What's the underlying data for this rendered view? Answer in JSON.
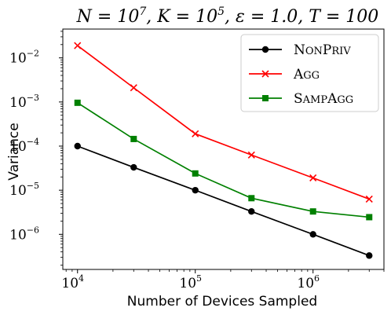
{
  "chart_data": {
    "type": "line",
    "title": "N = 10^7, K = 10^5, ε = 1.0, T = 100",
    "title_parts": {
      "n_label": "N = 10",
      "n_exp": "7",
      "k_label": ", K = 10",
      "k_exp": "5",
      "rest": ", ε = 1.0, T = 100"
    },
    "xlabel": "Number of Devices Sampled",
    "ylabel": "Variance",
    "x_scale": "log",
    "y_scale": "log",
    "xlim": [
      7500,
      4000000
    ],
    "ylim": [
      1.6e-07,
      0.045
    ],
    "x_ticks": [
      {
        "value": 10000,
        "base": "10",
        "exp": "4"
      },
      {
        "value": 100000,
        "base": "10",
        "exp": "5"
      },
      {
        "value": 1000000,
        "base": "10",
        "exp": "6"
      }
    ],
    "y_ticks": [
      {
        "value": 1e-06,
        "base": "10",
        "exp": "−6"
      },
      {
        "value": 1e-05,
        "base": "10",
        "exp": "−5"
      },
      {
        "value": 0.0001,
        "base": "10",
        "exp": "−4"
      },
      {
        "value": 0.001,
        "base": "10",
        "exp": "−3"
      },
      {
        "value": 0.01,
        "base": "10",
        "exp": "−2"
      }
    ],
    "x": [
      10000,
      30000,
      100000,
      300000,
      1000000,
      3000000
    ],
    "series": [
      {
        "name": "NonPriv",
        "name_display": {
          "cap1": "N",
          "low1": "ON",
          "cap2": "P",
          "low2": "RIV"
        },
        "color": "#000000",
        "marker": "circle",
        "values": [
          0.0001,
          3.3e-05,
          1e-05,
          3.3e-06,
          1e-06,
          3.3e-07
        ]
      },
      {
        "name": "Agg",
        "name_display": {
          "cap1": "A",
          "low1": "GG",
          "cap2": "",
          "low2": ""
        },
        "color": "#ff0000",
        "marker": "x",
        "values": [
          0.019,
          0.0021,
          0.00019,
          6.3e-05,
          1.9e-05,
          6.3e-06
        ]
      },
      {
        "name": "SampAgg",
        "name_display": {
          "cap1": "S",
          "low1": "AMP",
          "cap2": "A",
          "low2": "GG"
        },
        "color": "#008000",
        "marker": "square",
        "values": [
          0.00096,
          0.000145,
          2.4e-05,
          6.6e-06,
          3.3e-06,
          2.45e-06
        ]
      }
    ],
    "legend_position": "top-right",
    "grid": false
  }
}
